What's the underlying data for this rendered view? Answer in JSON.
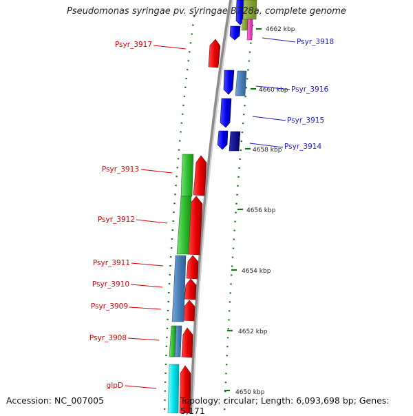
{
  "title": "Pseudomonas syringae pv. syringae B728a, complete genome",
  "footer": {
    "accession": "Accession: NC_007005",
    "summary": "Topology: circular; Length: 6,093,698 bp; Genes: 5,171"
  },
  "colors": {
    "backbone": "#8c8c8c",
    "forward_label": "#d40000",
    "reverse_label": "#1a1acc",
    "tick": "#117711"
  },
  "scale_labels": [
    "4662 kbp",
    "4660 kbp",
    "4658 kbp",
    "4656 kbp",
    "4654 kbp",
    "4652 kbp",
    "4650 kbp"
  ],
  "gene_labels_left": [
    "Psyr_3917",
    "Psyr_3913",
    "Psyr_3912",
    "Psyr_3911",
    "Psyr_3910",
    "Psyr_3909",
    "Psyr_3908",
    "glpD"
  ],
  "gene_labels_right": [
    "Psyr_3918",
    "Psyr_3916",
    "Psyr_3915",
    "Psyr_3914"
  ]
}
